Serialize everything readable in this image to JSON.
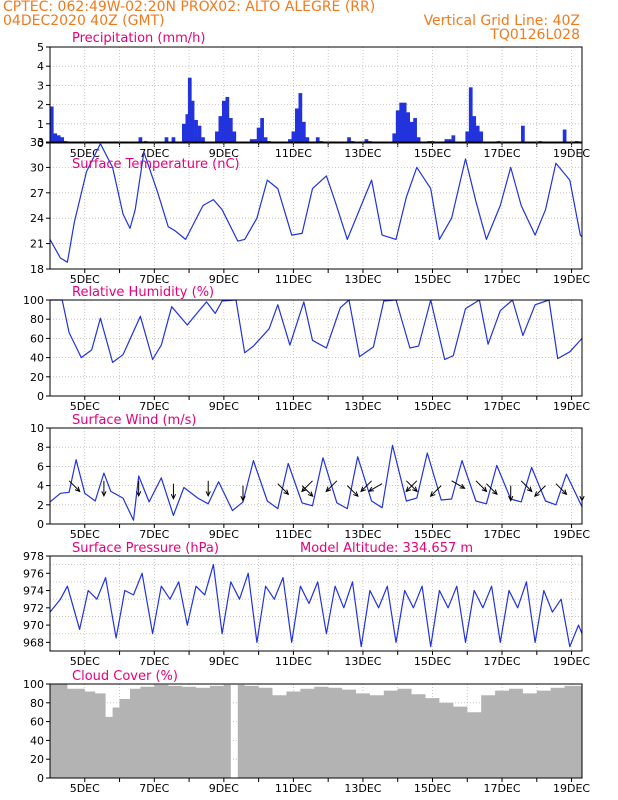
{
  "header": {
    "line1": "CPTEC:   062:49W-02:20N   PROX02: ALTO ALEGRE (RR)",
    "line2": "04DEC2020 40Z (GMT)",
    "grid_note": "Vertical Grid Line: 40Z",
    "code": "TQ0126L028"
  },
  "colors": {
    "header": "#f07a1e",
    "title": "#e8007a",
    "series": "#2233dd",
    "cloud": "#b3b3b3",
    "grid": "#bbbbbb",
    "axis": "#000000"
  },
  "x_labels": [
    "5DEC",
    "7DEC",
    "9DEC",
    "11DEC",
    "13DEC",
    "15DEC",
    "17DEC",
    "19DEC"
  ],
  "chart_data": [
    {
      "id": "precipitation",
      "type": "bar",
      "title": "Precipitation (mm/h)",
      "yticks": [
        "0",
        "1",
        "2",
        "3",
        "4",
        "5"
      ],
      "ylim": [
        0,
        5
      ],
      "xlim": [
        0,
        15.3
      ],
      "grid": true,
      "x": [
        0.05,
        0.15,
        0.25,
        0.35,
        0.45,
        2.6,
        2.75,
        3.35,
        3.55,
        3.85,
        3.95,
        4.02,
        4.1,
        4.2,
        4.3,
        4.4,
        4.8,
        4.9,
        5.0,
        5.1,
        5.2,
        5.3,
        5.8,
        5.9,
        6.0,
        6.1,
        6.2,
        6.3,
        6.9,
        7.0,
        7.1,
        7.2,
        7.3,
        7.4,
        7.7,
        7.8,
        8.6,
        8.7,
        9.1,
        9.2,
        9.9,
        10.0,
        10.1,
        10.2,
        10.3,
        10.4,
        10.5,
        10.6,
        10.9,
        11.0,
        11.4,
        11.5,
        11.6,
        12.0,
        12.1,
        12.2,
        12.3,
        12.4,
        12.9,
        13.6,
        14.1,
        14.8,
        15.15
      ],
      "values": [
        1.9,
        0.5,
        0.4,
        0.3,
        0.1,
        0.3,
        0.1,
        0.3,
        0.3,
        1.0,
        1.5,
        3.4,
        2.2,
        1.2,
        0.9,
        0.3,
        0.6,
        1.4,
        2.2,
        2.4,
        1.3,
        0.6,
        0.2,
        0.2,
        0.8,
        1.3,
        0.3,
        0.1,
        0.2,
        0.6,
        1.8,
        2.6,
        1.1,
        0.3,
        0.3,
        0.1,
        0.3,
        0.1,
        0.2,
        0.1,
        0.5,
        1.7,
        2.1,
        2.1,
        1.6,
        1.1,
        1.3,
        0.3,
        0.1,
        0.1,
        0.2,
        0.2,
        0.4,
        0.6,
        2.9,
        1.4,
        0.9,
        0.6,
        0.1,
        0.9,
        0.1,
        0.7,
        0.1
      ]
    },
    {
      "id": "temperature",
      "type": "line",
      "title": "Surface Temperature (nC)",
      "yticks": [
        "18",
        "21",
        "24",
        "27",
        "30",
        "33"
      ],
      "ylim": [
        18,
        33
      ],
      "xlim": [
        0,
        15.3
      ],
      "grid": true,
      "x": [
        0,
        0.3,
        0.5,
        0.7,
        1.05,
        1.45,
        1.8,
        2.1,
        2.3,
        2.45,
        2.7,
        3.1,
        3.4,
        3.6,
        3.9,
        4.4,
        4.7,
        4.95,
        5.4,
        5.6,
        5.95,
        6.25,
        6.55,
        6.95,
        7.25,
        7.55,
        7.95,
        8.2,
        8.55,
        8.95,
        9.25,
        9.55,
        9.95,
        10.25,
        10.55,
        10.95,
        11.2,
        11.55,
        11.95,
        12.25,
        12.55,
        12.95,
        13.25,
        13.55,
        13.95,
        14.25,
        14.55,
        14.95,
        15.25,
        15.3
      ],
      "values": [
        21.5,
        19.3,
        18.8,
        23.5,
        29.5,
        32.8,
        30,
        24.5,
        22.8,
        25,
        31.8,
        27,
        23,
        22.5,
        21.5,
        25.5,
        26.2,
        25,
        21.3,
        21.5,
        24,
        28.5,
        27.5,
        22,
        22.2,
        27.5,
        29,
        26,
        21.5,
        25.5,
        28.5,
        22,
        21.5,
        26.5,
        30,
        27.5,
        21.5,
        24,
        31,
        26,
        21.5,
        25.5,
        30,
        25.5,
        22,
        25,
        30.5,
        28.5,
        22,
        21.8
      ]
    },
    {
      "id": "humidity",
      "type": "line",
      "title": "Relative Humidity (%)",
      "yticks": [
        "0",
        "20",
        "40",
        "60",
        "80",
        "100"
      ],
      "ylim": [
        0,
        100
      ],
      "xlim": [
        0,
        15.3
      ],
      "grid": true,
      "x": [
        0,
        0.35,
        0.55,
        0.9,
        1.2,
        1.45,
        1.8,
        2.1,
        2.6,
        2.95,
        3.2,
        3.5,
        3.95,
        4.2,
        4.5,
        4.75,
        4.95,
        5.35,
        5.6,
        5.85,
        6.3,
        6.55,
        6.9,
        7.3,
        7.55,
        7.95,
        8.35,
        8.6,
        8.9,
        9.3,
        9.6,
        9.95,
        10.35,
        10.6,
        10.95,
        11.35,
        11.6,
        11.95,
        12.35,
        12.6,
        12.95,
        13.3,
        13.6,
        13.95,
        14.35,
        14.6,
        14.95,
        15.3
      ],
      "values": [
        100,
        100,
        66,
        40,
        48,
        81,
        35,
        43,
        83,
        38,
        53,
        93,
        74,
        85,
        98,
        86,
        99,
        100,
        45,
        52,
        70,
        95,
        53,
        98,
        58,
        50,
        92,
        100,
        41,
        51,
        99,
        100,
        50,
        52,
        100,
        38,
        42,
        91,
        100,
        54,
        89,
        100,
        63,
        95,
        100,
        39,
        46,
        60
      ]
    },
    {
      "id": "wind",
      "type": "line",
      "title": "Surface Wind (m/s)",
      "yticks": [
        "0",
        "2",
        "4",
        "6",
        "8",
        "10"
      ],
      "ylim": [
        0,
        10
      ],
      "xlim": [
        0,
        15.3
      ],
      "grid": true,
      "x": [
        0,
        0.3,
        0.55,
        0.75,
        1.0,
        1.3,
        1.55,
        1.75,
        2.1,
        2.4,
        2.55,
        2.85,
        3.2,
        3.55,
        3.85,
        4.25,
        4.55,
        4.85,
        5.25,
        5.55,
        5.85,
        6.25,
        6.55,
        6.85,
        7.25,
        7.55,
        7.85,
        8.25,
        8.55,
        8.85,
        9.25,
        9.55,
        9.85,
        10.25,
        10.55,
        10.85,
        11.25,
        11.55,
        11.85,
        12.25,
        12.55,
        12.85,
        13.25,
        13.55,
        13.85,
        14.25,
        14.55,
        14.85,
        15.3
      ],
      "values": [
        2.3,
        3.2,
        3.3,
        6.7,
        3.2,
        2.4,
        5.3,
        3.4,
        2.7,
        0.4,
        5,
        2.3,
        4.8,
        0.9,
        3.8,
        2.7,
        2.1,
        4.4,
        1.4,
        2.3,
        6.6,
        2.4,
        1.6,
        6.3,
        2.2,
        1.9,
        6.9,
        2.2,
        1.6,
        7.0,
        2.4,
        1.7,
        8.2,
        2.4,
        2.7,
        7.4,
        2.5,
        2.6,
        6.6,
        2.4,
        2.1,
        6.1,
        2.6,
        2.3,
        5.9,
        2.4,
        2.0,
        5.2,
        1.8
      ]
    },
    {
      "id": "wind_vectors",
      "type": "vector",
      "x": [
        0.55,
        1.55,
        2.55,
        3.55,
        4.55,
        5.55,
        6.55,
        7.25,
        7.55,
        8.25,
        8.55,
        9.25,
        9.55,
        10.25,
        10.55,
        11.25,
        11.55,
        12.25,
        12.55,
        13.25,
        13.55,
        14.25,
        14.55,
        15.3
      ],
      "speed": [
        4.5,
        4.5,
        4.5,
        4.2,
        4.5,
        4.0,
        4.2,
        4.0,
        4.5,
        4.5,
        4.0,
        4.5,
        4.2,
        4.5,
        4.5,
        4.0,
        4.5,
        4.5,
        4.2,
        4.0,
        4.5,
        4.0,
        4.2,
        4.0
      ],
      "direction_deg": [
        135,
        90,
        90,
        90,
        90,
        90,
        135,
        45,
        45,
        45,
        45,
        45,
        30,
        45,
        45,
        45,
        30,
        135,
        135,
        90,
        135,
        45,
        45,
        90
      ]
    },
    {
      "id": "pressure",
      "type": "line",
      "title": "Surface Pressure (hPa)",
      "annotation": "Model Altitude: 334.657  m",
      "yticks": [
        "968",
        "970",
        "972",
        "974",
        "976",
        "978"
      ],
      "ylim": [
        967,
        978
      ],
      "xlim": [
        0,
        15.3
      ],
      "grid": true,
      "x": [
        0,
        0.3,
        0.5,
        0.85,
        1.1,
        1.35,
        1.6,
        1.9,
        2.15,
        2.4,
        2.65,
        2.95,
        3.2,
        3.45,
        3.7,
        3.95,
        4.2,
        4.45,
        4.7,
        4.95,
        5.2,
        5.45,
        5.7,
        5.95,
        6.2,
        6.45,
        6.7,
        6.95,
        7.2,
        7.45,
        7.7,
        7.95,
        8.2,
        8.45,
        8.7,
        8.95,
        9.2,
        9.45,
        9.7,
        9.95,
        10.2,
        10.45,
        10.7,
        10.95,
        11.2,
        11.45,
        11.7,
        11.95,
        12.2,
        12.45,
        12.7,
        12.95,
        13.2,
        13.45,
        13.7,
        13.95,
        14.2,
        14.45,
        14.7,
        14.95,
        15.2,
        15.3
      ],
      "values": [
        971.5,
        973,
        974.5,
        969.5,
        974,
        973,
        975.5,
        968.5,
        974,
        973.5,
        976,
        969,
        974.5,
        973,
        975,
        970,
        974.5,
        973.5,
        977,
        969,
        975,
        973,
        976,
        968,
        974.5,
        973,
        975.5,
        968,
        974.5,
        972.5,
        975,
        969,
        974.5,
        972,
        975,
        967.5,
        974,
        972,
        974.5,
        968,
        974,
        972,
        974.5,
        967.5,
        974,
        972,
        974.5,
        968,
        974,
        972,
        974.5,
        968,
        974,
        972,
        975,
        968,
        974,
        971.5,
        973,
        967.5,
        970,
        969
      ]
    },
    {
      "id": "cloud",
      "type": "area",
      "title": "Cloud Cover (%)",
      "yticks": [
        "0",
        "20",
        "40",
        "60",
        "80",
        "100"
      ],
      "ylim": [
        0,
        100
      ],
      "xlim": [
        0,
        15.3
      ],
      "grid": true,
      "x": [
        0,
        0.5,
        1.0,
        1.3,
        1.6,
        1.8,
        2.0,
        2.3,
        2.6,
        3.0,
        3.4,
        3.8,
        4.2,
        4.6,
        5.0,
        5.2,
        5.4,
        5.6,
        6.0,
        6.4,
        6.8,
        7.2,
        7.6,
        8.0,
        8.4,
        8.8,
        9.2,
        9.6,
        10.0,
        10.4,
        10.8,
        11.2,
        11.6,
        12.0,
        12.4,
        12.8,
        13.2,
        13.6,
        14.0,
        14.4,
        14.8,
        15.3
      ],
      "values": [
        100,
        95,
        92,
        90,
        65,
        75,
        84,
        95,
        97,
        99,
        98,
        97,
        96,
        98,
        99,
        0,
        99,
        98,
        96,
        88,
        92,
        95,
        97,
        96,
        94,
        90,
        88,
        93,
        95,
        89,
        85,
        80,
        76,
        70,
        88,
        93,
        95,
        90,
        93,
        96,
        98,
        96
      ]
    }
  ]
}
